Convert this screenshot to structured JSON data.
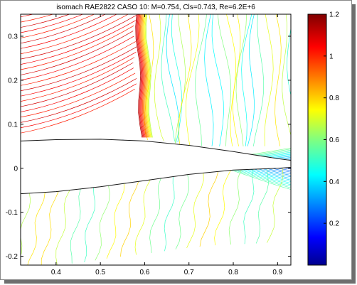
{
  "chart_data": {
    "type": "contour",
    "title": "isomach RAE2822 CASO 10: M=0.754, Cls=0.743, Re=6.2E+6",
    "xlabel": "",
    "ylabel": "",
    "xlim": [
      0.32,
      0.93
    ],
    "ylim": [
      -0.22,
      0.35
    ],
    "x_ticks": [
      0.4,
      0.5,
      0.6,
      0.7,
      0.8,
      0.9
    ],
    "x_tick_labels": [
      "0.4",
      "0.5",
      "0.6",
      "0.7",
      "0.8",
      "0.9"
    ],
    "y_ticks": [
      -0.2,
      -0.1,
      0,
      0.1,
      0.2,
      0.3
    ],
    "y_tick_labels": [
      "-0.2",
      "-0.1",
      "0",
      "0.1",
      "0.2",
      "0.3"
    ],
    "grid": false,
    "colormap": "jet",
    "colorbar": {
      "range": [
        0.0,
        1.2
      ],
      "ticks": [
        0.2,
        0.4,
        0.6,
        0.8,
        1.0,
        1.2
      ],
      "tick_labels": [
        "0.2",
        "0.4",
        "0.6",
        "0.8",
        "1",
        "1.2"
      ],
      "colors": [
        "#00008f",
        "#0000ff",
        "#0080ff",
        "#00ffff",
        "#80ff80",
        "#ffff00",
        "#ff8000",
        "#ff0000",
        "#800000"
      ]
    },
    "shock_x": 0.59,
    "airfoil_upper": [
      [
        0.32,
        0.062
      ],
      [
        0.4,
        0.065
      ],
      [
        0.5,
        0.066
      ],
      [
        0.6,
        0.062
      ],
      [
        0.7,
        0.052
      ],
      [
        0.8,
        0.038
      ],
      [
        0.9,
        0.022
      ],
      [
        0.93,
        0.018
      ]
    ],
    "airfoil_lower": [
      [
        0.32,
        -0.058
      ],
      [
        0.4,
        -0.053
      ],
      [
        0.5,
        -0.042
      ],
      [
        0.6,
        -0.028
      ],
      [
        0.7,
        -0.014
      ],
      [
        0.8,
        -0.004
      ],
      [
        0.9,
        0.0
      ],
      [
        0.93,
        0.002
      ]
    ]
  }
}
